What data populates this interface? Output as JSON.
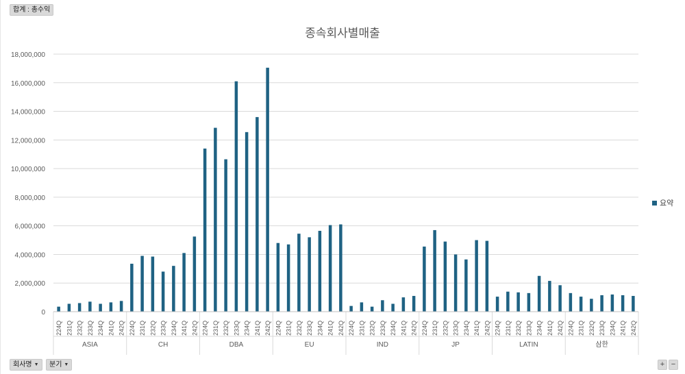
{
  "field_buttons": {
    "value_field": "합계 : 총수익",
    "row_field": "회사명",
    "view_field": "분기",
    "zoom_in": "+",
    "zoom_out": "−"
  },
  "legend": {
    "label": "요약"
  },
  "colors": {
    "bar": "#1f6283",
    "grid": "#d9d9d9",
    "axis_text": "#595959"
  },
  "chart_data": {
    "type": "bar",
    "title": "종속회사별매출",
    "xlabel": "",
    "ylabel": "",
    "ylim": [
      0,
      18000000
    ],
    "y_ticks": [
      "0",
      "2,000,000",
      "4,000,000",
      "6,000,000",
      "8,000,000",
      "10,000,000",
      "12,000,000",
      "14,000,000",
      "16,000,000",
      "18,000,000"
    ],
    "y_tick_values": [
      0,
      2000000,
      4000000,
      6000000,
      8000000,
      10000000,
      12000000,
      14000000,
      16000000,
      18000000
    ],
    "grid": true,
    "legend_position": "right",
    "series_name": "요약",
    "groups": [
      {
        "name": "ASIA",
        "quarters": [
          "224Q",
          "231Q",
          "232Q",
          "233Q",
          "234Q",
          "241Q",
          "242Q"
        ],
        "values": [
          350000,
          550000,
          600000,
          700000,
          550000,
          650000,
          750000
        ]
      },
      {
        "name": "CH",
        "quarters": [
          "224Q",
          "231Q",
          "232Q",
          "233Q",
          "234Q",
          "241Q",
          "242Q"
        ],
        "values": [
          3350000,
          3900000,
          3850000,
          2800000,
          3200000,
          4100000,
          5250000
        ]
      },
      {
        "name": "DBA",
        "quarters": [
          "224Q",
          "231Q",
          "232Q",
          "233Q",
          "234Q",
          "241Q",
          "242Q"
        ],
        "values": [
          11400000,
          12850000,
          10650000,
          16100000,
          12550000,
          13600000,
          17050000
        ]
      },
      {
        "name": "EU",
        "quarters": [
          "224Q",
          "231Q",
          "232Q",
          "233Q",
          "234Q",
          "241Q",
          "242Q"
        ],
        "values": [
          4800000,
          4700000,
          5450000,
          5200000,
          5650000,
          6050000,
          6100000
        ]
      },
      {
        "name": "IND",
        "quarters": [
          "224Q",
          "231Q",
          "232Q",
          "233Q",
          "234Q",
          "241Q",
          "242Q"
        ],
        "values": [
          400000,
          650000,
          350000,
          800000,
          550000,
          1000000,
          1100000
        ]
      },
      {
        "name": "JP",
        "quarters": [
          "224Q",
          "231Q",
          "232Q",
          "233Q",
          "234Q",
          "241Q",
          "242Q"
        ],
        "values": [
          4550000,
          5700000,
          4900000,
          4000000,
          3650000,
          5000000,
          4950000
        ]
      },
      {
        "name": "LATIN",
        "quarters": [
          "224Q",
          "231Q",
          "232Q",
          "233Q",
          "234Q",
          "241Q",
          "242Q"
        ],
        "values": [
          1050000,
          1400000,
          1350000,
          1300000,
          2500000,
          2150000,
          1850000
        ]
      },
      {
        "name": "삼한",
        "quarters": [
          "224Q",
          "231Q",
          "232Q",
          "233Q",
          "234Q",
          "241Q",
          "242Q"
        ],
        "values": [
          1300000,
          1050000,
          900000,
          1150000,
          1200000,
          1150000,
          1100000
        ]
      }
    ]
  }
}
